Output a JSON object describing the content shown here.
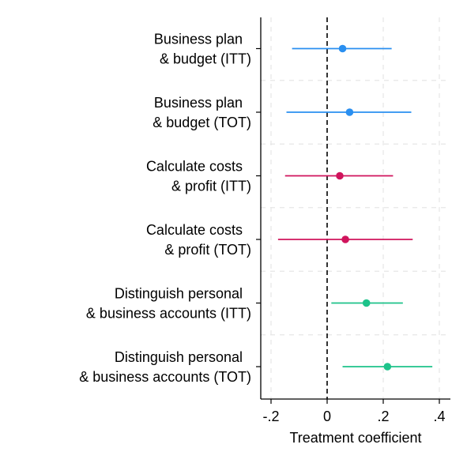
{
  "chart_data": {
    "type": "scatter",
    "subtype": "coefficient-plot",
    "title": "",
    "xlabel": "Treatment coefficient",
    "ylabel": "",
    "xlim": [
      -0.24,
      0.43
    ],
    "xticks": [
      -0.2,
      0,
      0.2,
      0.4
    ],
    "xtick_labels": [
      "-.2",
      "0",
      ".2",
      ".4"
    ],
    "reference_line": 0,
    "grid": true,
    "legend": "none",
    "categories": [
      {
        "line1": "Business plan",
        "line2": "& budget (ITT)",
        "estimate": 0.055,
        "ci_low": -0.125,
        "ci_high": 0.23,
        "color": "#2a8ff0"
      },
      {
        "line1": "Business plan",
        "line2": "& budget (TOT)",
        "estimate": 0.08,
        "ci_low": -0.145,
        "ci_high": 0.3,
        "color": "#2a8ff0"
      },
      {
        "line1": "Calculate costs",
        "line2": "& profit (ITT)",
        "estimate": 0.045,
        "ci_low": -0.15,
        "ci_high": 0.235,
        "color": "#d0145c"
      },
      {
        "line1": "Calculate costs",
        "line2": "& profit (TOT)",
        "estimate": 0.065,
        "ci_low": -0.175,
        "ci_high": 0.305,
        "color": "#d0145c"
      },
      {
        "line1": "Distinguish personal",
        "line2": "& business accounts (ITT)",
        "estimate": 0.14,
        "ci_low": 0.015,
        "ci_high": 0.27,
        "color": "#1dc38a"
      },
      {
        "line1": "Distinguish personal",
        "line2": "& business accounts (TOT)",
        "estimate": 0.215,
        "ci_low": 0.055,
        "ci_high": 0.375,
        "color": "#1dc38a"
      }
    ]
  }
}
